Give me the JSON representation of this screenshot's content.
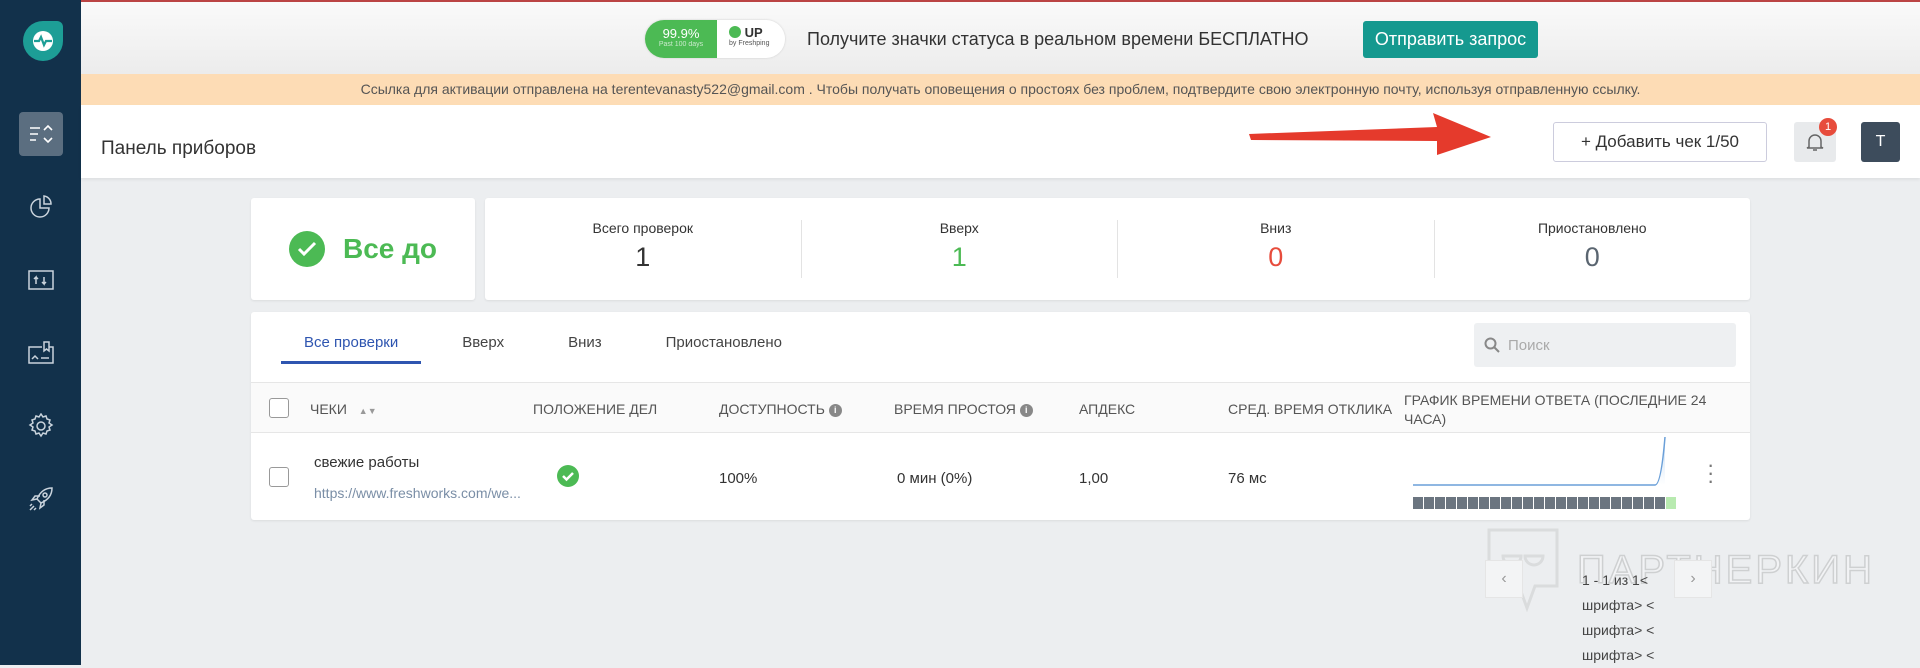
{
  "sidebar": {
    "items": [
      "dashboard-icon",
      "reports-icon",
      "status-page-icon",
      "incidents-icon",
      "settings-icon",
      "rocket-icon"
    ],
    "active": 0
  },
  "banner": {
    "badge_uptime": "99.9%",
    "badge_period": "Past 100 days",
    "badge_status": "UP",
    "badge_by": "by Freshping",
    "text": "Получите значки статуса в реальном времени БЕСПЛАТНО",
    "button": "Отправить запрос",
    "close": "×"
  },
  "notice": "Ссылка для активации отправлена на terentevanasty522@gmail.com . Чтобы получать оповещения о простоях без проблем, подтвердите свою электронную почту, используя отправленную ссылку.",
  "header": {
    "title": "Панель приборов",
    "add_button": "+ Добавить чек 1/50",
    "notifications": "1",
    "avatar": "T"
  },
  "status": {
    "text": "Все до"
  },
  "stats": [
    {
      "label": "Всего проверок",
      "value": "1",
      "color": "#333333"
    },
    {
      "label": "Вверх",
      "value": "1",
      "color": "#4cba54"
    },
    {
      "label": "Вниз",
      "value": "0",
      "color": "#e74c3c"
    },
    {
      "label": "Приостановлено",
      "value": "0",
      "color": "#5a6570"
    }
  ],
  "tabs": [
    "Все проверки",
    "Вверх",
    "Вниз",
    "Приостановлено"
  ],
  "search": {
    "placeholder": "Поиск"
  },
  "columns": [
    "ЧЕКИ",
    "ПОЛОЖЕНИЕ ДЕЛ",
    "ДОСТУПНОСТЬ",
    "ВРЕМЯ ПРОСТОЯ",
    "АПДЕКС",
    "СРЕД. ВРЕМЯ ОТКЛИКА",
    "ГРАФИК ВРЕМЕНИ ОТВЕТА (ПОСЛЕДНИЕ 24 ЧАСА)"
  ],
  "rows": [
    {
      "name": "свежие работы",
      "url": "https://www.freshworks.com/we...",
      "status": "up",
      "availability": "100%",
      "downtime": "0 мин (0%)",
      "apdex": "1,00",
      "avg_response": "76 мс",
      "hourly_status": [
        "none",
        "none",
        "none",
        "none",
        "none",
        "none",
        "none",
        "none",
        "none",
        "none",
        "none",
        "none",
        "none",
        "none",
        "none",
        "none",
        "none",
        "none",
        "none",
        "none",
        "none",
        "none",
        "none",
        "up"
      ]
    }
  ],
  "pagination": {
    "text": "1 - 1 из 1<",
    "extra": [
      "шрифта> <",
      "шрифта> <",
      "шрифта> <"
    ],
    "prev": "‹",
    "next": "›"
  },
  "watermark": "ПАРТНЕРКИН",
  "colors": {
    "sidebar": "#12314b",
    "accent": "#15998f",
    "up": "#4cba54",
    "down": "#e74c3c",
    "tab_active": "#2e55b0",
    "notice": "#fddcb5"
  }
}
